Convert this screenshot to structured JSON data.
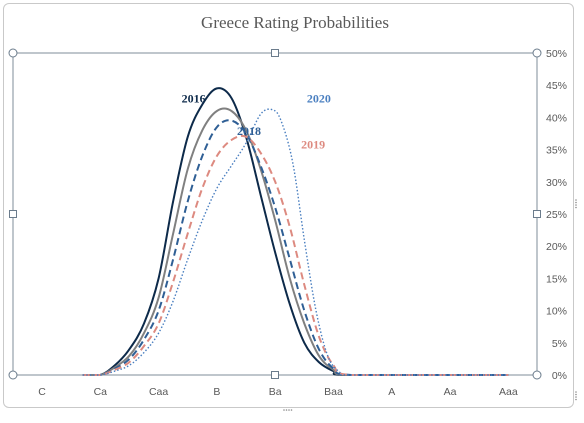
{
  "chart_data": {
    "type": "line",
    "title": "Greece Rating Probabilities",
    "xlabel": "",
    "ylabel": "",
    "categories": [
      "C",
      "Ca",
      "Caa",
      "B",
      "Ba",
      "Baa",
      "A",
      "Aa",
      "Aaa"
    ],
    "y_ticks": [
      "0%",
      "5%",
      "10%",
      "15%",
      "20%",
      "25%",
      "30%",
      "35%",
      "40%",
      "45%",
      "50%"
    ],
    "ylim": [
      0,
      50
    ],
    "y_axis_position": "right",
    "grid": false,
    "legend": "inline-labels",
    "series": [
      {
        "name": "2016",
        "color": "#0d2a4a",
        "style": "solid",
        "points": [
          [
            0.7,
            0
          ],
          [
            1,
            0
          ],
          [
            1.25,
            1.5
          ],
          [
            1.5,
            4
          ],
          [
            1.75,
            8
          ],
          [
            2,
            15
          ],
          [
            2.25,
            27
          ],
          [
            2.5,
            37
          ],
          [
            2.75,
            42
          ],
          [
            3,
            44.5
          ],
          [
            3.25,
            43
          ],
          [
            3.5,
            37
          ],
          [
            3.75,
            28
          ],
          [
            4,
            19
          ],
          [
            4.25,
            11
          ],
          [
            4.5,
            5
          ],
          [
            4.75,
            2
          ],
          [
            5,
            0.6
          ],
          [
            5.2,
            0
          ],
          [
            7,
            0
          ],
          [
            8,
            0
          ]
        ]
      },
      {
        "name": "",
        "color": "#808080",
        "style": "solid",
        "points": [
          [
            0.7,
            0
          ],
          [
            1,
            0
          ],
          [
            1.25,
            1.2
          ],
          [
            1.5,
            3
          ],
          [
            1.75,
            6.5
          ],
          [
            2,
            12
          ],
          [
            2.25,
            22
          ],
          [
            2.5,
            32
          ],
          [
            2.75,
            38
          ],
          [
            3,
            41
          ],
          [
            3.25,
            41
          ],
          [
            3.5,
            38
          ],
          [
            3.75,
            32
          ],
          [
            4,
            24
          ],
          [
            4.25,
            15
          ],
          [
            4.5,
            8
          ],
          [
            4.75,
            3
          ],
          [
            5,
            0.8
          ],
          [
            5.25,
            0
          ],
          [
            7,
            0
          ],
          [
            8,
            0
          ]
        ]
      },
      {
        "name": "2018",
        "color": "#2f5f95",
        "style": "dashed",
        "points": [
          [
            0.7,
            0
          ],
          [
            1,
            0
          ],
          [
            1.25,
            1
          ],
          [
            1.5,
            2.5
          ],
          [
            1.75,
            5.5
          ],
          [
            2,
            10
          ],
          [
            2.25,
            18
          ],
          [
            2.5,
            27
          ],
          [
            2.75,
            34
          ],
          [
            3,
            38.5
          ],
          [
            3.25,
            39.5
          ],
          [
            3.5,
            37.5
          ],
          [
            3.75,
            32.5
          ],
          [
            4,
            26
          ],
          [
            4.25,
            18
          ],
          [
            4.5,
            10
          ],
          [
            4.75,
            4
          ],
          [
            5,
            1
          ],
          [
            5.3,
            0
          ],
          [
            7,
            0
          ],
          [
            8,
            0
          ]
        ]
      },
      {
        "name": "2019",
        "color": "#dd8a80",
        "style": "dashed",
        "points": [
          [
            0.7,
            0
          ],
          [
            1,
            0
          ],
          [
            1.25,
            0.8
          ],
          [
            1.5,
            2
          ],
          [
            1.75,
            4.5
          ],
          [
            2,
            8
          ],
          [
            2.25,
            14.5
          ],
          [
            2.5,
            22
          ],
          [
            2.75,
            29
          ],
          [
            3,
            34
          ],
          [
            3.25,
            36.5
          ],
          [
            3.5,
            37
          ],
          [
            3.75,
            34.5
          ],
          [
            4,
            30
          ],
          [
            4.25,
            23
          ],
          [
            4.5,
            14
          ],
          [
            4.75,
            6
          ],
          [
            5,
            1.5
          ],
          [
            5.3,
            0
          ],
          [
            7,
            0
          ],
          [
            8,
            0
          ]
        ]
      },
      {
        "name": "2020",
        "color": "#4a7fc0",
        "style": "dotted",
        "points": [
          [
            0.7,
            0
          ],
          [
            1,
            0
          ],
          [
            1.25,
            0.6
          ],
          [
            1.5,
            1.5
          ],
          [
            1.75,
            3.5
          ],
          [
            2,
            6.5
          ],
          [
            2.25,
            11.5
          ],
          [
            2.5,
            18
          ],
          [
            2.75,
            24
          ],
          [
            3,
            29
          ],
          [
            3.25,
            32.5
          ],
          [
            3.5,
            36
          ],
          [
            3.75,
            40.5
          ],
          [
            3.95,
            41.2
          ],
          [
            4.1,
            39.5
          ],
          [
            4.3,
            33
          ],
          [
            4.5,
            21
          ],
          [
            4.7,
            10
          ],
          [
            4.9,
            3
          ],
          [
            5.1,
            0.5
          ],
          [
            5.3,
            0
          ],
          [
            7,
            0
          ],
          [
            8,
            0
          ]
        ]
      }
    ],
    "labels": [
      {
        "text": "2016",
        "x": 2.6,
        "y": 42.3,
        "color": "#0d2a4a"
      },
      {
        "text": "2018",
        "x": 3.55,
        "y": 37.3,
        "color": "#2f5f95"
      },
      {
        "text": "2019",
        "x": 4.65,
        "y": 35.2,
        "color": "#dd8a80"
      },
      {
        "text": "2020",
        "x": 4.75,
        "y": 42.3,
        "color": "#4a7fc0"
      }
    ]
  }
}
